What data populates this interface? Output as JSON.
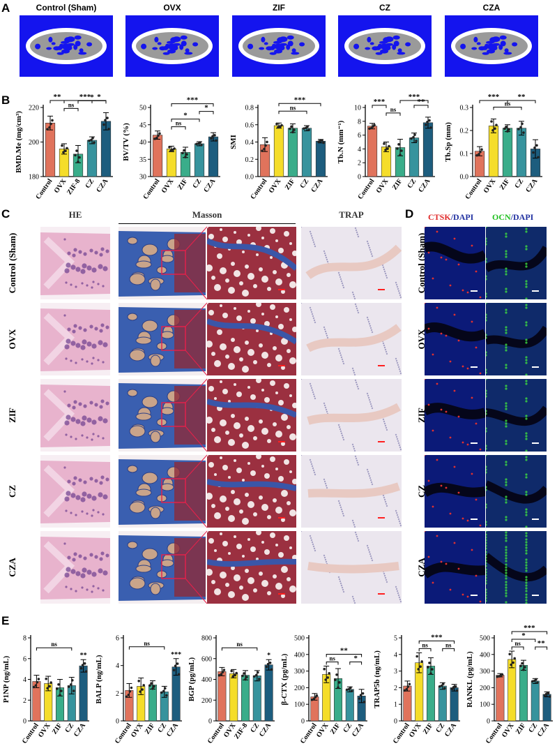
{
  "colors": {
    "control": "#e0735c",
    "ovx": "#f5dd2a",
    "zif": "#3aad8a",
    "cz": "#37939d",
    "cza": "#1d5d7e",
    "ctBlue": "#1414ee",
    "pink": "#e8b3cd",
    "masson": "#3a5fb0",
    "trap": "#ebe6ee"
  },
  "panelA": {
    "label": "A",
    "titles": [
      "Control (Sham)",
      "OVX",
      "ZIF",
      "CZ",
      "CZA"
    ]
  },
  "panelB": {
    "label": "B"
  },
  "panelC": {
    "label": "C",
    "headers": {
      "he": "HE",
      "masson": "Masson",
      "trap": "TRAP"
    },
    "rows": [
      "Control (Sham)",
      "OVX",
      "ZIF",
      "CZ",
      "CZA"
    ]
  },
  "panelD": {
    "label": "D",
    "header1": {
      "a": "CTSK",
      "b": "/DAPI"
    },
    "header2": {
      "a": "OCN",
      "b": "/DAPI"
    },
    "rows": [
      "Control (Sham)",
      "OVX",
      "ZIF",
      "CZ",
      "CZA"
    ]
  },
  "panelE": {
    "label": "E"
  },
  "chart_data": [
    {
      "id": "bmd",
      "type": "bar",
      "ylabel": "BMD.Me (mg/cm³)",
      "ylim": [
        180,
        220
      ],
      "ticks": [
        "180",
        "200",
        "220"
      ],
      "categories": [
        "Control",
        "OVX",
        "ZIF-8",
        "CZ",
        "CZA"
      ],
      "values": [
        211,
        196,
        193,
        201,
        212
      ],
      "errors": [
        4,
        3,
        5,
        2,
        5
      ],
      "sig": [
        {
          "a": 0,
          "b": 1,
          "t": "**",
          "lvl": 2
        },
        {
          "a": 1,
          "b": 4,
          "t": "***",
          "lvl": 3
        },
        {
          "a": 1,
          "b": 2,
          "t": "ns",
          "lvl": 0
        },
        {
          "a": 2,
          "b": 4,
          "t": "*",
          "lvl": 1
        },
        {
          "a": 3,
          "b": 4,
          "t": "*",
          "lvl": 2
        }
      ]
    },
    {
      "id": "bvtv",
      "type": "bar",
      "ylabel": "BV/TV (%)",
      "ylim": [
        30,
        50
      ],
      "ticks": [
        "30",
        "35",
        "40",
        "45",
        "50"
      ],
      "categories": [
        "Control",
        "OVX",
        "ZIF",
        "CZ",
        "CZA"
      ],
      "values": [
        42,
        38,
        37,
        39.5,
        41.5
      ],
      "errors": [
        1.2,
        0.8,
        1.5,
        0.6,
        1.2
      ],
      "sig": [
        {
          "a": 1,
          "b": 2,
          "t": "ns",
          "lvl": 0
        },
        {
          "a": 1,
          "b": 3,
          "t": "*",
          "lvl": 1
        },
        {
          "a": 3,
          "b": 4,
          "t": "*",
          "lvl": 2
        },
        {
          "a": 1,
          "b": 4,
          "t": "***",
          "lvl": 3
        }
      ]
    },
    {
      "id": "smi",
      "type": "bar",
      "ylabel": "SMI",
      "ylim": [
        0,
        0.8
      ],
      "ticks": [
        "0.0",
        "0.2",
        "0.4",
        "0.6",
        "0.8"
      ],
      "categories": [
        "Control",
        "OVX",
        "ZIF",
        "CZ",
        "CZA"
      ],
      "values": [
        0.37,
        0.59,
        0.56,
        0.56,
        0.41
      ],
      "errors": [
        0.08,
        0.03,
        0.05,
        0.03,
        0.02
      ],
      "sig": [
        {
          "a": 1,
          "b": 3,
          "t": "ns",
          "lvl": 1
        },
        {
          "a": 1,
          "b": 4,
          "t": "***",
          "lvl": 2
        }
      ]
    },
    {
      "id": "tbn",
      "type": "bar",
      "ylabel": "Tb.N (mm⁻¹)",
      "ylim": [
        0,
        10
      ],
      "ticks": [
        "0",
        "2",
        "4",
        "6",
        "8",
        "10"
      ],
      "categories": [
        "Control",
        "OVX",
        "ZIF",
        "CZ",
        "CZA"
      ],
      "values": [
        7.3,
        4.3,
        4.2,
        5.6,
        7.8
      ],
      "errors": [
        0.4,
        0.7,
        1.2,
        0.7,
        0.8
      ],
      "sig": [
        {
          "a": 0,
          "b": 1,
          "t": "***",
          "lvl": 1
        },
        {
          "a": 1,
          "b": 2,
          "t": "ns",
          "lvl": 0
        },
        {
          "a": 3,
          "b": 4,
          "t": "**",
          "lvl": 1
        },
        {
          "a": 2,
          "b": 4,
          "t": "***",
          "lvl": 2
        }
      ]
    },
    {
      "id": "tbsp",
      "type": "bar",
      "ylabel": "Tb.Sp (mm)",
      "ylim": [
        0,
        0.3
      ],
      "ticks": [
        "0.0",
        "0.1",
        "0.2",
        "0.3"
      ],
      "categories": [
        "Control",
        "OVX",
        "ZIF",
        "CZ",
        "CZA"
      ],
      "values": [
        0.11,
        0.22,
        0.21,
        0.21,
        0.12
      ],
      "errors": [
        0.02,
        0.03,
        0.015,
        0.03,
        0.04
      ],
      "sig": [
        {
          "a": 0,
          "b": 2,
          "t": "***",
          "lvl": 2
        },
        {
          "a": 1,
          "b": 3,
          "t": "ns",
          "lvl": 1
        },
        {
          "a": 2,
          "b": 4,
          "t": "**",
          "lvl": 2
        }
      ]
    },
    {
      "id": "p1np",
      "type": "bar",
      "ylabel": "P1NP (ng/mL)",
      "ylim": [
        0,
        8
      ],
      "ticks": [
        "0",
        "2",
        "4",
        "6",
        "8"
      ],
      "categories": [
        "Control",
        "OVX",
        "ZIF",
        "CZ",
        "CZA"
      ],
      "values": [
        3.8,
        3.6,
        3.2,
        3.4,
        5.3
      ],
      "errors": [
        0.6,
        0.7,
        0.8,
        0.8,
        0.6
      ],
      "sig": [
        {
          "a": 0,
          "b": 3,
          "t": "ns",
          "lvl": 1
        }
      ],
      "top": [
        {
          "i": 4,
          "t": "**"
        }
      ]
    },
    {
      "id": "balp",
      "type": "bar",
      "ylabel": "BALP (ng/mL)",
      "ylim": [
        0,
        6
      ],
      "ticks": [
        "0",
        "2",
        "4",
        "6"
      ],
      "categories": [
        "Control",
        "OVX",
        "ZIF",
        "CZ",
        "CZA"
      ],
      "values": [
        2.2,
        2.5,
        2.6,
        2.1,
        3.9
      ],
      "errors": [
        0.5,
        0.6,
        0.3,
        0.4,
        0.6
      ],
      "sig": [
        {
          "a": 0,
          "b": 3,
          "t": "ns",
          "lvl": 1
        }
      ],
      "top": [
        {
          "i": 4,
          "t": "***"
        }
      ]
    },
    {
      "id": "bgp",
      "type": "bar",
      "ylabel": "BGP (pg/mL)",
      "ylim": [
        0,
        800
      ],
      "ticks": [
        "0",
        "200",
        "400",
        "600",
        "800"
      ],
      "categories": [
        "Control",
        "OVX",
        "ZIF-8",
        "CZ",
        "CZA"
      ],
      "values": [
        475,
        455,
        440,
        435,
        540
      ],
      "errors": [
        40,
        40,
        45,
        50,
        50
      ],
      "sig": [
        {
          "a": 0,
          "b": 3,
          "t": "ns",
          "lvl": 1
        }
      ],
      "top": [
        {
          "i": 4,
          "t": "*"
        }
      ]
    },
    {
      "id": "bctx",
      "type": "bar",
      "ylabel": "β-CTX (pg/mL)",
      "ylim": [
        0,
        500
      ],
      "ticks": [
        "0",
        "100",
        "200",
        "300",
        "400",
        "500"
      ],
      "categories": [
        "Control",
        "OVX",
        "ZIF",
        "CZ",
        "CZA"
      ],
      "values": [
        145,
        280,
        255,
        190,
        150
      ],
      "errors": [
        20,
        50,
        60,
        15,
        40
      ],
      "sig": [
        {
          "a": 1,
          "b": 2,
          "t": "ns",
          "lvl": 0
        },
        {
          "a": 3,
          "b": 4,
          "t": "*",
          "lvl": 0
        },
        {
          "a": 1,
          "b": 4,
          "t": "**",
          "lvl": 1
        }
      ]
    },
    {
      "id": "trap5b",
      "type": "bar",
      "ylabel": "TRAP5b (ng/mL)",
      "ylim": [
        0,
        5
      ],
      "ticks": [
        "0",
        "1",
        "2",
        "3",
        "4",
        "5"
      ],
      "categories": [
        "Control",
        "OVX",
        "ZIF",
        "CZ",
        "CZA"
      ],
      "values": [
        2.1,
        3.5,
        3.3,
        2.1,
        2.0
      ],
      "errors": [
        0.3,
        0.6,
        0.5,
        0.2,
        0.2
      ],
      "sig": [
        {
          "a": 1,
          "b": 2,
          "t": "ns",
          "lvl": 0
        },
        {
          "a": 3,
          "b": 4,
          "t": "ns",
          "lvl": 0
        },
        {
          "a": 1,
          "b": 4,
          "t": "***",
          "lvl": 1
        }
      ]
    },
    {
      "id": "rankl",
      "type": "bar",
      "ylabel": "RANKL (pg/mL)",
      "ylim": [
        0,
        500
      ],
      "ticks": [
        "0",
        "100",
        "200",
        "300",
        "400",
        "500"
      ],
      "categories": [
        "Control",
        "OVX",
        "ZIF",
        "CZ",
        "CZA"
      ],
      "values": [
        275,
        370,
        335,
        240,
        160
      ],
      "errors": [
        10,
        50,
        30,
        15,
        15
      ],
      "sig": [
        {
          "a": 1,
          "b": 2,
          "t": "ns",
          "lvl": 0
        },
        {
          "a": 1,
          "b": 3,
          "t": "*",
          "lvl": 1
        },
        {
          "a": 3,
          "b": 4,
          "t": "**",
          "lvl": 0
        },
        {
          "a": 1,
          "b": 4,
          "t": "***",
          "lvl": 2
        }
      ]
    }
  ]
}
